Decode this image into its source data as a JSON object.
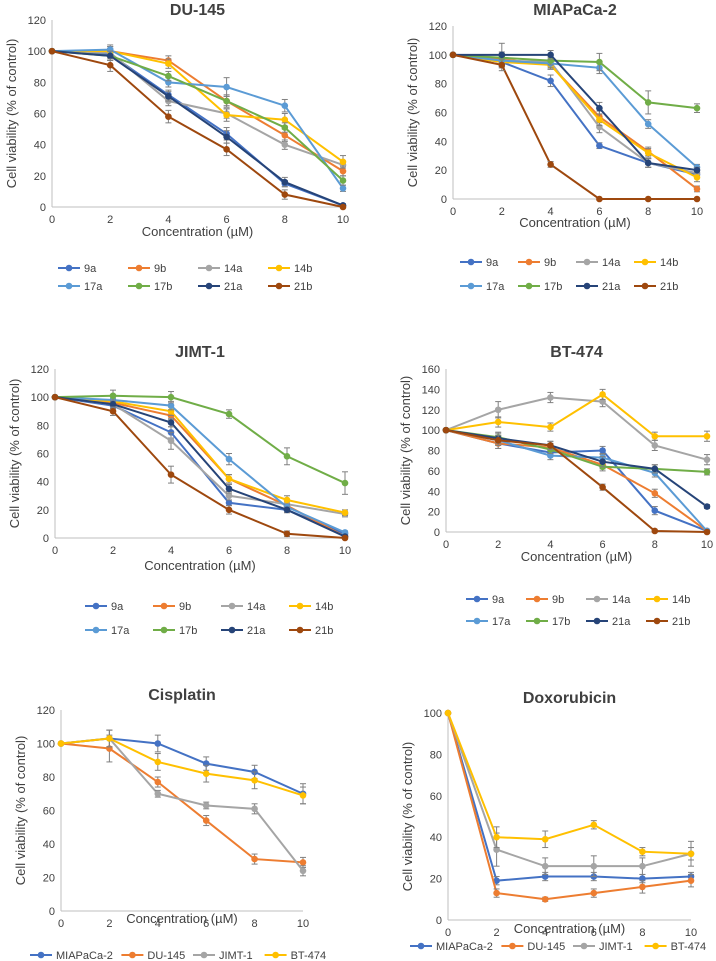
{
  "figure": {
    "series_colors": {
      "9a": "#4472C4",
      "9b": "#ED7D31",
      "14a": "#A5A5A5",
      "14b": "#FFC000",
      "17a": "#5B9BD5",
      "17b": "#70AD47",
      "21a": "#264478",
      "21b": "#9E480E",
      "MIAPaCa-2": "#4472C4",
      "DU-145": "#ED7D31",
      "JIMT-1": "#A5A5A5",
      "BT-474": "#FFC000"
    }
  },
  "chart_data": [
    {
      "id": "du145",
      "type": "line",
      "title": "DU-145",
      "xlabel": "Concentration (µM)",
      "ylabel": "Cell viability (% of control)",
      "x": [
        0,
        2,
        4,
        6,
        8,
        10
      ],
      "xlim": [
        0,
        10
      ],
      "ylim": [
        0,
        120
      ],
      "xticks": [
        0,
        2,
        4,
        6,
        8,
        10
      ],
      "yticks": [
        0,
        20,
        40,
        60,
        80,
        100,
        120
      ],
      "grid": false,
      "legend_position": "bottom",
      "legend_columns": 4,
      "series": [
        {
          "name": "9a",
          "values": [
            100,
            98,
            72,
            47,
            15,
            1
          ],
          "errors": [
            0,
            3,
            3,
            4,
            2,
            1
          ]
        },
        {
          "name": "9b",
          "values": [
            100,
            100,
            94,
            68,
            46,
            23
          ],
          "errors": [
            0,
            3,
            3,
            3,
            4,
            3
          ]
        },
        {
          "name": "14a",
          "values": [
            100,
            99,
            68,
            60,
            40,
            27
          ],
          "errors": [
            0,
            3,
            3,
            3,
            3,
            2
          ]
        },
        {
          "name": "14b",
          "values": [
            100,
            100,
            92,
            59,
            56,
            29
          ],
          "errors": [
            0,
            3,
            3,
            4,
            4,
            4
          ]
        },
        {
          "name": "17a",
          "values": [
            100,
            101,
            80,
            77,
            65,
            12
          ],
          "errors": [
            0,
            3,
            3,
            6,
            4,
            2
          ]
        },
        {
          "name": "17b",
          "values": [
            100,
            97,
            84,
            68,
            51,
            17
          ],
          "errors": [
            0,
            3,
            3,
            4,
            3,
            3
          ]
        },
        {
          "name": "21a",
          "values": [
            100,
            97,
            71,
            45,
            16,
            1
          ],
          "errors": [
            0,
            3,
            3,
            4,
            3,
            1
          ]
        },
        {
          "name": "21b",
          "values": [
            100,
            91,
            58,
            37,
            8,
            0
          ],
          "errors": [
            0,
            4,
            4,
            4,
            3,
            0
          ]
        }
      ]
    },
    {
      "id": "miapaca",
      "type": "line",
      "title": "MIAPaCa-2",
      "xlabel": "Concentration (µM)",
      "ylabel": "Cell viability (% of control)",
      "x": [
        0,
        2,
        4,
        6,
        8,
        10
      ],
      "xlim": [
        0,
        10
      ],
      "ylim": [
        0,
        120
      ],
      "xticks": [
        0,
        2,
        4,
        6,
        8,
        10
      ],
      "yticks": [
        0,
        20,
        40,
        60,
        80,
        100,
        120
      ],
      "grid": false,
      "legend_position": "bottom",
      "legend_columns": 4,
      "series": [
        {
          "name": "9a",
          "values": [
            100,
            95,
            82,
            37,
            25,
            17
          ],
          "errors": [
            0,
            4,
            4,
            2,
            3,
            2
          ]
        },
        {
          "name": "9b",
          "values": [
            100,
            97,
            93,
            57,
            33,
            7
          ],
          "errors": [
            0,
            4,
            3,
            4,
            3,
            2
          ]
        },
        {
          "name": "14a",
          "values": [
            100,
            96,
            95,
            50,
            25,
            18
          ],
          "errors": [
            0,
            4,
            3,
            4,
            3,
            3
          ]
        },
        {
          "name": "14b",
          "values": [
            100,
            95,
            93,
            55,
            32,
            15
          ],
          "errors": [
            0,
            4,
            3,
            4,
            3,
            3
          ]
        },
        {
          "name": "17a",
          "values": [
            100,
            96,
            94,
            91,
            52,
            22
          ],
          "errors": [
            0,
            4,
            3,
            4,
            3,
            2
          ]
        },
        {
          "name": "17b",
          "values": [
            100,
            98,
            96,
            95,
            67,
            63
          ],
          "errors": [
            0,
            4,
            3,
            6,
            8,
            3
          ]
        },
        {
          "name": "21a",
          "values": [
            100,
            100,
            100,
            63,
            25,
            20
          ],
          "errors": [
            0,
            8,
            3,
            4,
            3,
            2
          ]
        },
        {
          "name": "21b",
          "values": [
            100,
            93,
            24,
            0,
            0,
            0
          ],
          "errors": [
            0,
            4,
            2,
            0,
            0,
            0
          ]
        }
      ]
    },
    {
      "id": "jimt1",
      "type": "line",
      "title": "JIMT-1",
      "xlabel": "Concentration (µM)",
      "ylabel": "Cell viability (% of control)",
      "x": [
        0,
        2,
        4,
        6,
        8,
        10
      ],
      "xlim": [
        0,
        10
      ],
      "ylim": [
        0,
        120
      ],
      "xticks": [
        0,
        2,
        4,
        6,
        8,
        10
      ],
      "yticks": [
        0,
        20,
        40,
        60,
        80,
        100,
        120
      ],
      "grid": false,
      "legend_position": "bottom",
      "legend_columns": 4,
      "series": [
        {
          "name": "9a",
          "values": [
            100,
            94,
            75,
            25,
            20,
            3
          ],
          "errors": [
            0,
            3,
            4,
            2,
            2,
            1
          ]
        },
        {
          "name": "9b",
          "values": [
            100,
            96,
            87,
            42,
            23,
            1
          ],
          "errors": [
            0,
            3,
            3,
            3,
            2,
            1
          ]
        },
        {
          "name": "14a",
          "values": [
            100,
            95,
            69,
            30,
            24,
            17
          ],
          "errors": [
            0,
            3,
            6,
            3,
            2,
            2
          ]
        },
        {
          "name": "14b",
          "values": [
            100,
            97,
            90,
            42,
            27,
            18
          ],
          "errors": [
            0,
            3,
            3,
            3,
            3,
            2
          ]
        },
        {
          "name": "17a",
          "values": [
            100,
            98,
            94,
            56,
            22,
            4
          ],
          "errors": [
            0,
            3,
            3,
            4,
            2,
            1
          ]
        },
        {
          "name": "17b",
          "values": [
            100,
            101,
            100,
            88,
            58,
            39
          ],
          "errors": [
            0,
            4,
            4,
            3,
            6,
            8
          ]
        },
        {
          "name": "21a",
          "values": [
            100,
            95,
            82,
            35,
            20,
            1
          ],
          "errors": [
            0,
            3,
            3,
            3,
            2,
            1
          ]
        },
        {
          "name": "21b",
          "values": [
            100,
            90,
            45,
            20,
            3,
            0
          ],
          "errors": [
            0,
            3,
            6,
            3,
            2,
            0
          ]
        }
      ]
    },
    {
      "id": "bt474",
      "type": "line",
      "title": "BT-474",
      "xlabel": "Concentration (µM)",
      "ylabel": "Cell viability (% of control)",
      "x": [
        0,
        2,
        4,
        6,
        8,
        10
      ],
      "xlim": [
        0,
        10
      ],
      "ylim": [
        0,
        160
      ],
      "xticks": [
        0,
        2,
        4,
        6,
        8,
        10
      ],
      "yticks": [
        0,
        20,
        40,
        60,
        80,
        100,
        120,
        140,
        160
      ],
      "grid": false,
      "legend_position": "bottom",
      "legend_columns": 4,
      "series": [
        {
          "name": "9a",
          "values": [
            100,
            87,
            78,
            80,
            21,
            1
          ],
          "errors": [
            0,
            5,
            4,
            4,
            4,
            1
          ]
        },
        {
          "name": "9b",
          "values": [
            100,
            87,
            83,
            66,
            38,
            1
          ],
          "errors": [
            0,
            5,
            4,
            4,
            4,
            1
          ]
        },
        {
          "name": "14a",
          "values": [
            100,
            120,
            132,
            128,
            85,
            71
          ],
          "errors": [
            0,
            8,
            5,
            5,
            5,
            5
          ]
        },
        {
          "name": "14b",
          "values": [
            100,
            108,
            103,
            135,
            94,
            94
          ],
          "errors": [
            0,
            5,
            4,
            5,
            4,
            5
          ]
        },
        {
          "name": "17a",
          "values": [
            100,
            90,
            75,
            73,
            58,
            1
          ],
          "errors": [
            0,
            5,
            4,
            4,
            4,
            1
          ]
        },
        {
          "name": "17b",
          "values": [
            100,
            93,
            81,
            64,
            62,
            59
          ],
          "errors": [
            0,
            5,
            4,
            4,
            4,
            3
          ]
        },
        {
          "name": "21a",
          "values": [
            100,
            92,
            85,
            69,
            62,
            25
          ],
          "errors": [
            0,
            5,
            4,
            5,
            4,
            2
          ]
        },
        {
          "name": "21b",
          "values": [
            100,
            90,
            85,
            44,
            1,
            0
          ],
          "errors": [
            0,
            5,
            4,
            3,
            1,
            0
          ]
        }
      ]
    },
    {
      "id": "cisplatin",
      "type": "line",
      "title": "Cisplatin",
      "xlabel": "Concentration (µM)",
      "ylabel": "Cell viability (% of control)",
      "x": [
        0,
        2,
        4,
        6,
        8,
        10
      ],
      "xlim": [
        0,
        10
      ],
      "ylim": [
        0,
        120
      ],
      "xticks": [
        0,
        2,
        4,
        6,
        8,
        10
      ],
      "yticks": [
        0,
        20,
        40,
        60,
        80,
        100,
        120
      ],
      "grid": false,
      "legend_position": "bottom",
      "legend_columns": 4,
      "series": [
        {
          "name": "MIAPaCa-2",
          "values": [
            100,
            103,
            100,
            88,
            83,
            70
          ],
          "errors": [
            0,
            5,
            5,
            4,
            4,
            6
          ]
        },
        {
          "name": "DU-145",
          "values": [
            100,
            97,
            77,
            54,
            31,
            29
          ],
          "errors": [
            0,
            8,
            3,
            3,
            3,
            3
          ]
        },
        {
          "name": "JIMT-1",
          "values": [
            100,
            103,
            70,
            63,
            61,
            24
          ],
          "errors": [
            0,
            5,
            2,
            2,
            3,
            3
          ]
        },
        {
          "name": "BT-474",
          "values": [
            100,
            103,
            89,
            82,
            78,
            69
          ],
          "errors": [
            0,
            5,
            5,
            5,
            5,
            5
          ]
        }
      ]
    },
    {
      "id": "doxorubicin",
      "type": "line",
      "title": "Doxorubicin",
      "xlabel": "Concentration (µM)",
      "ylabel": "Cell viability (% of control)",
      "x": [
        0,
        2,
        4,
        6,
        8,
        10
      ],
      "xlim": [
        0,
        10
      ],
      "ylim": [
        0,
        100
      ],
      "xticks": [
        0,
        2,
        4,
        6,
        8,
        10
      ],
      "yticks": [
        0,
        20,
        40,
        60,
        80,
        100
      ],
      "grid": false,
      "legend_position": "bottom",
      "legend_columns": 4,
      "series": [
        {
          "name": "MIAPaCa-2",
          "values": [
            100,
            19,
            21,
            21,
            20,
            21
          ],
          "errors": [
            0,
            2,
            2,
            2,
            2,
            2
          ]
        },
        {
          "name": "DU-145",
          "values": [
            100,
            13,
            10,
            13,
            16,
            19
          ],
          "errors": [
            0,
            2,
            1,
            2,
            3,
            3
          ]
        },
        {
          "name": "JIMT-1",
          "values": [
            100,
            34,
            26,
            26,
            26,
            32
          ],
          "errors": [
            0,
            8,
            4,
            5,
            4,
            6
          ]
        },
        {
          "name": "BT-474",
          "values": [
            100,
            40,
            39,
            46,
            33,
            32
          ],
          "errors": [
            0,
            5,
            4,
            2,
            2,
            3
          ]
        }
      ]
    }
  ]
}
